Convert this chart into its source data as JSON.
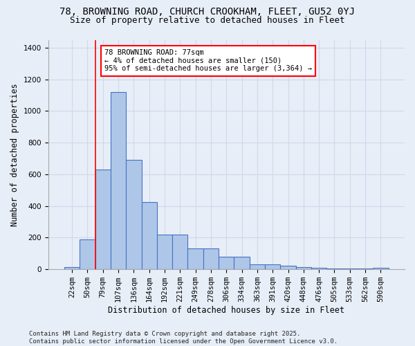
{
  "title1": "78, BROWNING ROAD, CHURCH CROOKHAM, FLEET, GU52 0YJ",
  "title2": "Size of property relative to detached houses in Fleet",
  "xlabel": "Distribution of detached houses by size in Fleet",
  "ylabel": "Number of detached properties",
  "categories": [
    "22sqm",
    "50sqm",
    "79sqm",
    "107sqm",
    "136sqm",
    "164sqm",
    "192sqm",
    "221sqm",
    "249sqm",
    "278sqm",
    "306sqm",
    "334sqm",
    "363sqm",
    "391sqm",
    "420sqm",
    "448sqm",
    "476sqm",
    "505sqm",
    "533sqm",
    "562sqm",
    "590sqm"
  ],
  "values": [
    15,
    190,
    630,
    1120,
    690,
    425,
    220,
    220,
    130,
    130,
    80,
    80,
    30,
    30,
    25,
    15,
    10,
    5,
    5,
    5,
    10
  ],
  "bar_color": "#aec6e8",
  "bar_edge_color": "#4472c4",
  "grid_color": "#d0d8e8",
  "background_color": "#e8eef8",
  "annotation_text": "78 BROWNING ROAD: 77sqm\n← 4% of detached houses are smaller (150)\n95% of semi-detached houses are larger (3,364) →",
  "annotation_box_color": "white",
  "annotation_box_edge": "red",
  "red_line_index": 2,
  "ylim": [
    0,
    1450
  ],
  "yticks": [
    0,
    200,
    400,
    600,
    800,
    1000,
    1200,
    1400
  ],
  "footer": "Contains HM Land Registry data © Crown copyright and database right 2025.\nContains public sector information licensed under the Open Government Licence v3.0.",
  "title1_fontsize": 10,
  "title2_fontsize": 9,
  "xlabel_fontsize": 8.5,
  "ylabel_fontsize": 8.5,
  "tick_fontsize": 7.5,
  "footer_fontsize": 6.5,
  "ann_fontsize": 7.5
}
